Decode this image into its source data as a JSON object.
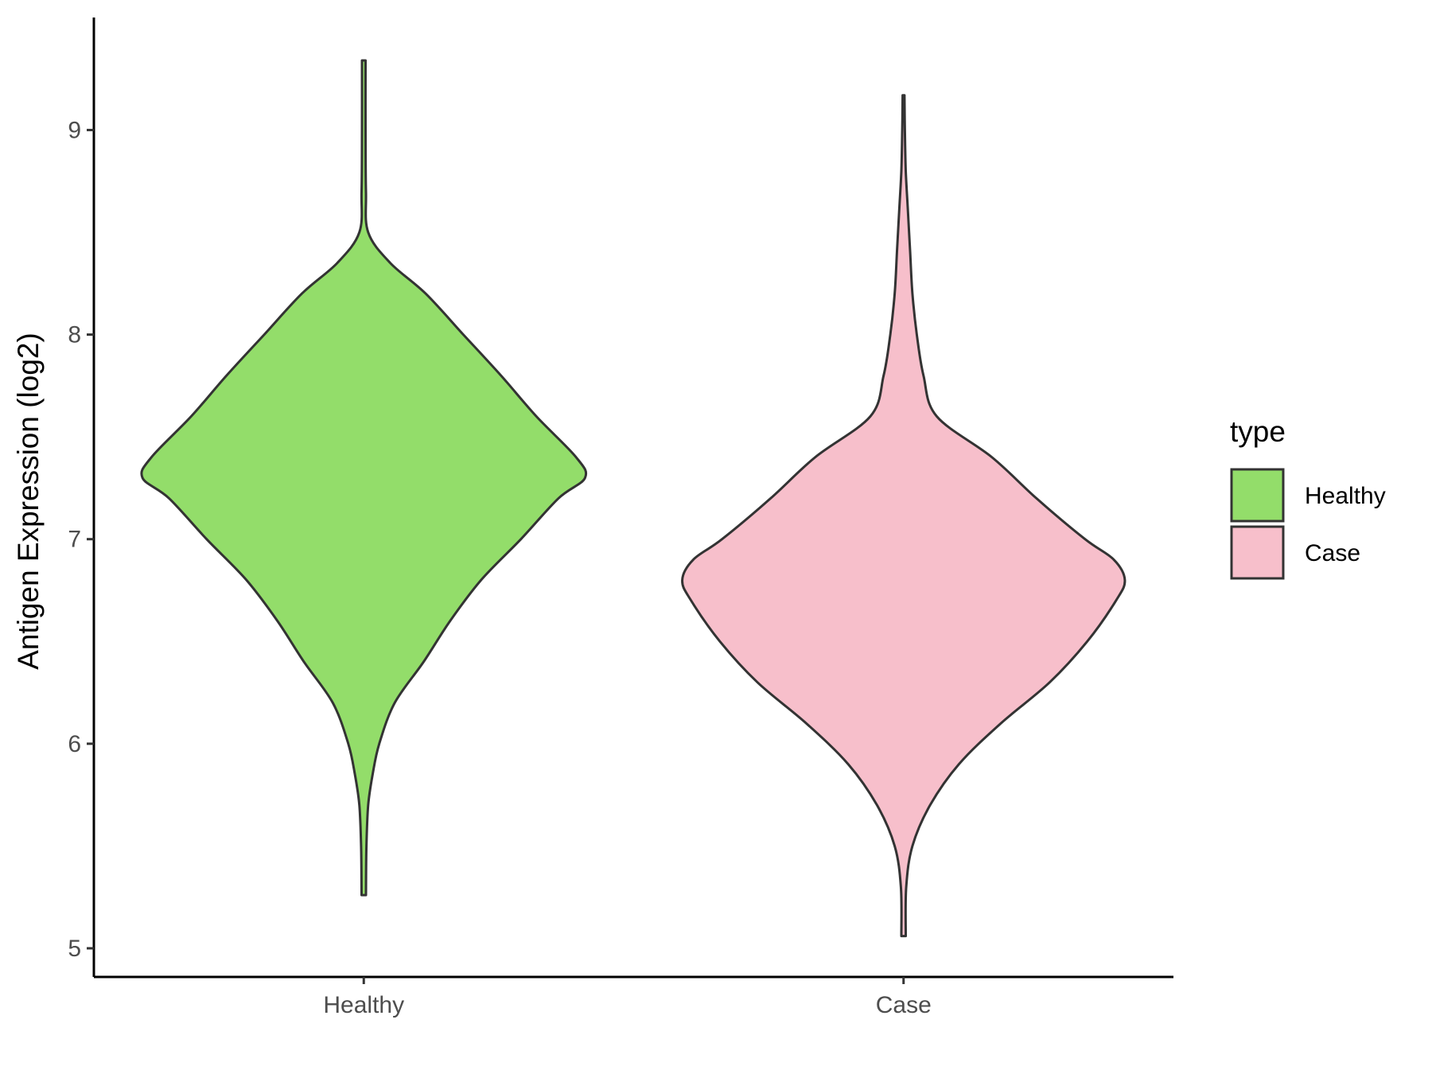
{
  "chart_data": {
    "type": "violin",
    "title": "",
    "xlabel": "",
    "ylabel": "Antigen Expression (log2)",
    "categories": [
      "Healthy",
      "Case"
    ],
    "ylim": [
      4.86,
      9.55
    ],
    "yticks": [
      5,
      6,
      7,
      8,
      9
    ],
    "grid": false,
    "legend": {
      "title": "type",
      "position": "right",
      "entries": [
        "Healthy",
        "Case"
      ]
    },
    "series": [
      {
        "name": "Healthy",
        "color": "#93dd6a",
        "min": 5.26,
        "max": 9.34,
        "density_profile": [
          [
            5.26,
            0.01
          ],
          [
            5.5,
            0.012
          ],
          [
            5.7,
            0.02
          ],
          [
            5.85,
            0.04
          ],
          [
            6.0,
            0.07
          ],
          [
            6.2,
            0.14
          ],
          [
            6.4,
            0.27
          ],
          [
            6.6,
            0.39
          ],
          [
            6.8,
            0.53
          ],
          [
            7.0,
            0.71
          ],
          [
            7.2,
            0.88
          ],
          [
            7.3,
            1.0
          ],
          [
            7.4,
            0.96
          ],
          [
            7.6,
            0.78
          ],
          [
            7.8,
            0.62
          ],
          [
            8.0,
            0.45
          ],
          [
            8.2,
            0.28
          ],
          [
            8.35,
            0.12
          ],
          [
            8.5,
            0.02
          ],
          [
            8.7,
            0.01
          ],
          [
            9.0,
            0.008
          ],
          [
            9.34,
            0.008
          ]
        ]
      },
      {
        "name": "Case",
        "color": "#f7bfcb",
        "min": 5.06,
        "max": 9.17,
        "density_profile": [
          [
            5.06,
            0.01
          ],
          [
            5.3,
            0.012
          ],
          [
            5.5,
            0.04
          ],
          [
            5.7,
            0.12
          ],
          [
            5.9,
            0.25
          ],
          [
            6.1,
            0.44
          ],
          [
            6.3,
            0.66
          ],
          [
            6.5,
            0.83
          ],
          [
            6.7,
            0.96
          ],
          [
            6.8,
            1.0
          ],
          [
            6.9,
            0.95
          ],
          [
            7.0,
            0.82
          ],
          [
            7.2,
            0.6
          ],
          [
            7.4,
            0.4
          ],
          [
            7.6,
            0.15
          ],
          [
            7.8,
            0.09
          ],
          [
            8.0,
            0.06
          ],
          [
            8.2,
            0.04
          ],
          [
            8.4,
            0.03
          ],
          [
            8.6,
            0.02
          ],
          [
            8.8,
            0.01
          ],
          [
            9.0,
            0.006
          ],
          [
            9.17,
            0.004
          ]
        ]
      }
    ]
  }
}
